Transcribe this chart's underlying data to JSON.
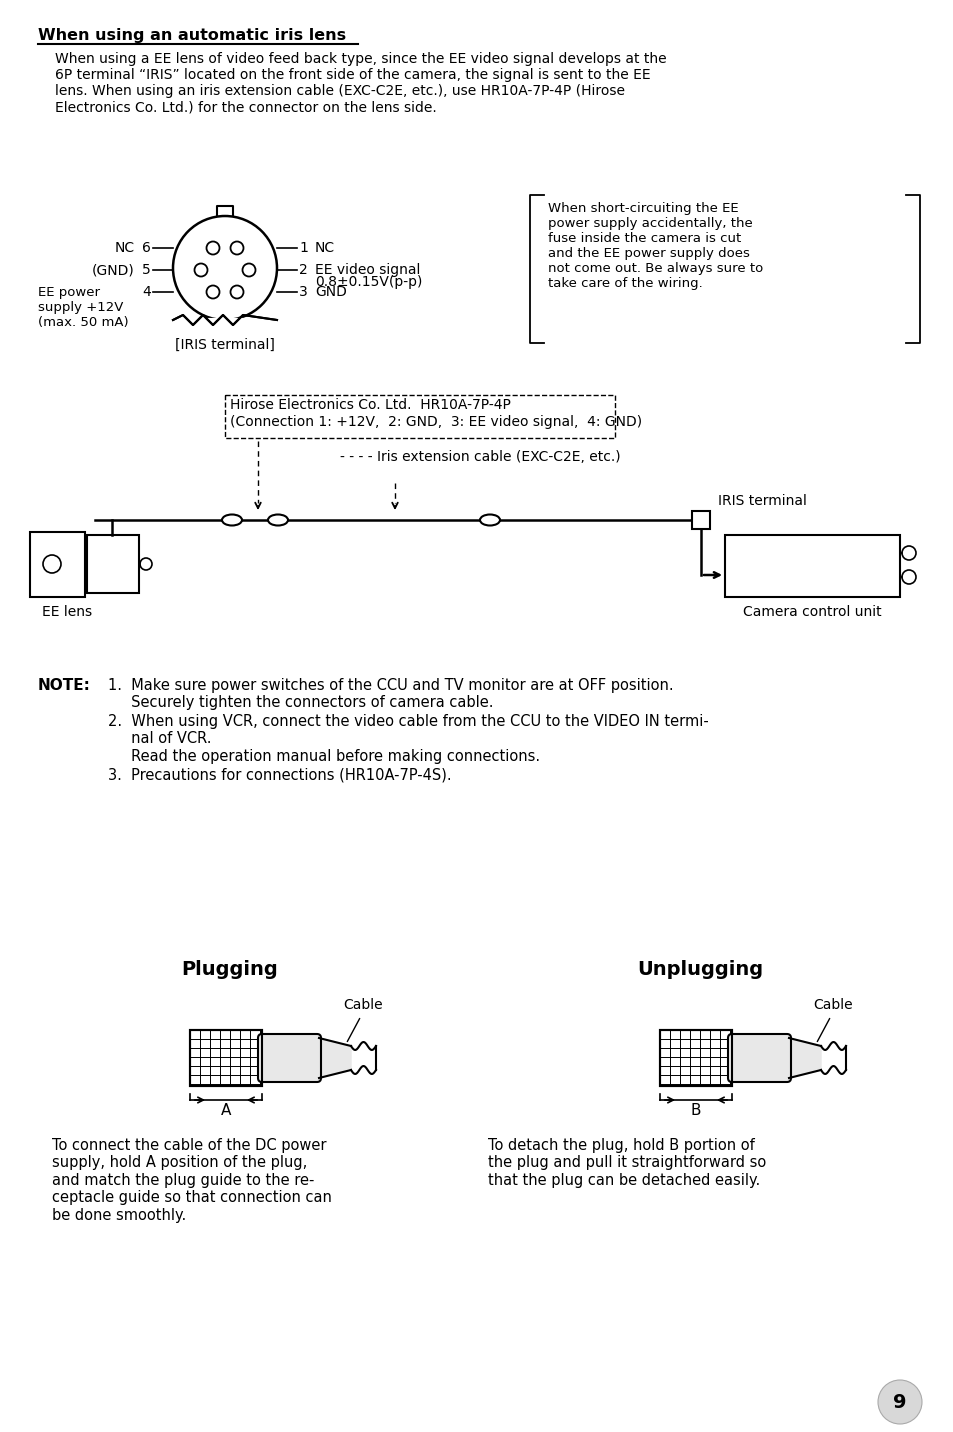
{
  "bg_color": "#ffffff",
  "page_number": "9",
  "heading": "When using an automatic iris lens",
  "paragraph1": "When using a EE lens of video feed back type, since the EE video signal develops at the\n6P terminal “IRIS” located on the front side of the camera, the signal is sent to the EE\nlens. When using an iris extension cable (EXC-C2E, etc.), use HR10A-7P-4P (Hirose\nElectronics Co. Ltd.) for the connector on the lens side.",
  "note_bold": "NOTE:",
  "plugging_title": "Plugging",
  "unplugging_title": "Unplugging",
  "plugging_desc": "To connect the cable of the DC power\nsupply, hold A position of the plug,\nand match the plug guide to the re-\nceptacle guide so that connection can\nbe done smoothly.",
  "unplugging_desc": "To detach the plug, hold B portion of\nthe plug and pull it straightforward so\nthat the plug can be detached easily.",
  "iris_terminal_label": "[IRIS terminal]",
  "hirose_line1": "Hirose Electronics Co. Ltd.  HR10A-7P-4P",
  "hirose_line2": "(Connection 1: +12V,  2: GND,  3: EE video signal,  4: GND)",
  "iris_ext_label": "- - - - Iris extension cable (EXC-C2E, etc.)",
  "iris_terminal_connector": "IRIS terminal",
  "ee_lens_label": "EE lens",
  "ccu_label": "Camera control unit",
  "side_note": "When short-circuiting the EE\npower supply accidentally, the\nfuse inside the camera is cut\nand the EE power supply does\nnot come out. Be always sure to\ntake care of the wiring.",
  "note_item1": "1.  Make sure power switches of the CCU and TV monitor are at OFF position.\n     Securely tighten the connectors of camera cable.",
  "note_item2": "2.  When using VCR, connect the video cable from the CCU to the VIDEO IN termi-\n     nal of VCR.\n     Read the operation manual before making connections.",
  "note_item3": "3.  Precautions for connections (HR10A-7P-4S)."
}
